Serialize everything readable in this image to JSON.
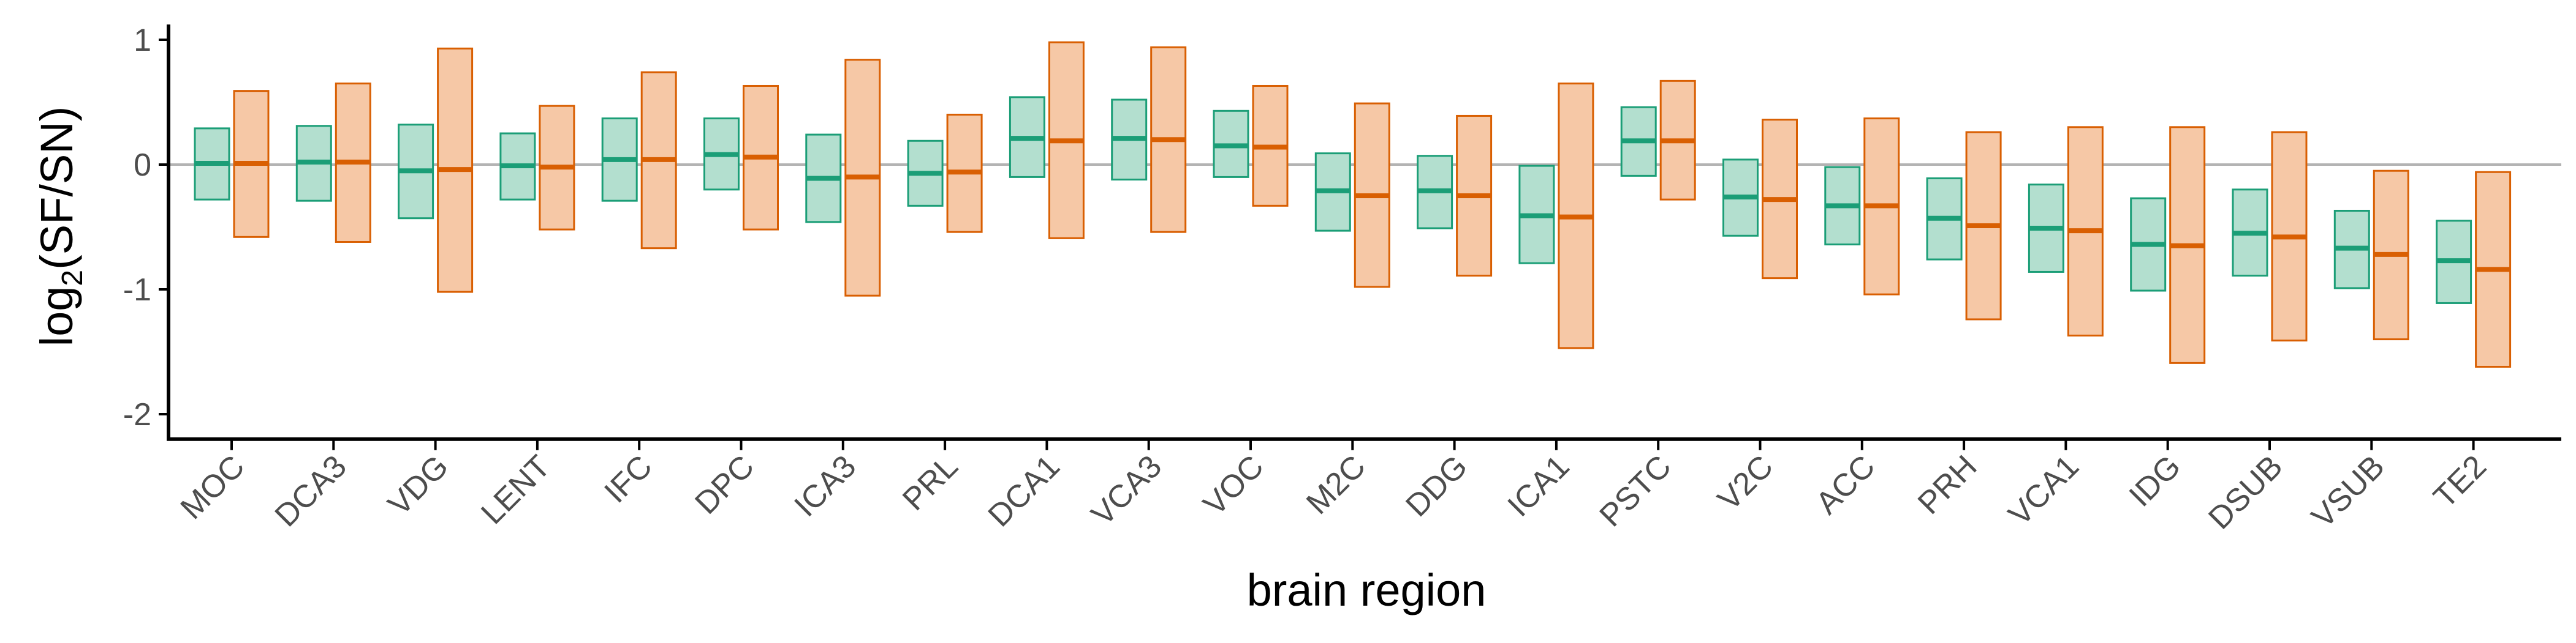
{
  "chart_data": {
    "type": "crossbar",
    "ylabel_main": "log",
    "ylabel_sub": "2",
    "ylabel_rest": "(SF/SN)",
    "xlabel": "brain region",
    "ylim": [
      -2.2,
      1.15
    ],
    "yticks": [
      1,
      0,
      -1,
      -2
    ],
    "yticklabels": [
      "1",
      "0",
      "-1",
      "-2"
    ],
    "reference_line": 0,
    "grid": false,
    "colors": {
      "green_fill": "#b3dfcf",
      "green_stroke": "#1b9e77",
      "orange_fill": "#f6c8a6",
      "orange_stroke": "#d95f02",
      "ref_line": "#b3b3b3",
      "axis": "#000000"
    },
    "categories": [
      "MOC",
      "DCA3",
      "VDG",
      "LENT",
      "IFC",
      "DPC",
      "ICA3",
      "PRL",
      "DCA1",
      "VCA3",
      "VOC",
      "M2C",
      "DDG",
      "ICA1",
      "PSTC",
      "V2C",
      "ACC",
      "PRH",
      "VCA1",
      "IDG",
      "DSUB",
      "VSUB",
      "TE2"
    ],
    "series": [
      {
        "color": "green",
        "values": [
          {
            "lower": -0.28,
            "mid": 0.01,
            "upper": 0.29
          },
          {
            "lower": -0.29,
            "mid": 0.02,
            "upper": 0.31
          },
          {
            "lower": -0.43,
            "mid": -0.05,
            "upper": 0.32
          },
          {
            "lower": -0.28,
            "mid": -0.01,
            "upper": 0.25
          },
          {
            "lower": -0.29,
            "mid": 0.04,
            "upper": 0.37
          },
          {
            "lower": -0.2,
            "mid": 0.08,
            "upper": 0.37
          },
          {
            "lower": -0.46,
            "mid": -0.11,
            "upper": 0.24
          },
          {
            "lower": -0.33,
            "mid": -0.07,
            "upper": 0.19
          },
          {
            "lower": -0.1,
            "mid": 0.21,
            "upper": 0.54
          },
          {
            "lower": -0.12,
            "mid": 0.21,
            "upper": 0.52
          },
          {
            "lower": -0.1,
            "mid": 0.15,
            "upper": 0.43
          },
          {
            "lower": -0.53,
            "mid": -0.21,
            "upper": 0.09
          },
          {
            "lower": -0.51,
            "mid": -0.21,
            "upper": 0.07
          },
          {
            "lower": -0.79,
            "mid": -0.41,
            "upper": -0.01
          },
          {
            "lower": -0.09,
            "mid": 0.19,
            "upper": 0.46
          },
          {
            "lower": -0.57,
            "mid": -0.26,
            "upper": 0.04
          },
          {
            "lower": -0.64,
            "mid": -0.33,
            "upper": -0.02
          },
          {
            "lower": -0.76,
            "mid": -0.43,
            "upper": -0.11
          },
          {
            "lower": -0.86,
            "mid": -0.51,
            "upper": -0.16
          },
          {
            "lower": -1.01,
            "mid": -0.64,
            "upper": -0.27
          },
          {
            "lower": -0.89,
            "mid": -0.55,
            "upper": -0.2
          },
          {
            "lower": -0.99,
            "mid": -0.67,
            "upper": -0.37
          },
          {
            "lower": -1.11,
            "mid": -0.77,
            "upper": -0.45
          }
        ]
      },
      {
        "color": "orange",
        "values": [
          {
            "lower": -0.58,
            "mid": 0.01,
            "upper": 0.59
          },
          {
            "lower": -0.62,
            "mid": 0.02,
            "upper": 0.65
          },
          {
            "lower": -1.02,
            "mid": -0.04,
            "upper": 0.93
          },
          {
            "lower": -0.52,
            "mid": -0.02,
            "upper": 0.47
          },
          {
            "lower": -0.67,
            "mid": 0.04,
            "upper": 0.74
          },
          {
            "lower": -0.52,
            "mid": 0.06,
            "upper": 0.63
          },
          {
            "lower": -1.05,
            "mid": -0.1,
            "upper": 0.84
          },
          {
            "lower": -0.54,
            "mid": -0.06,
            "upper": 0.4
          },
          {
            "lower": -0.59,
            "mid": 0.19,
            "upper": 0.98
          },
          {
            "lower": -0.54,
            "mid": 0.2,
            "upper": 0.94
          },
          {
            "lower": -0.33,
            "mid": 0.14,
            "upper": 0.63
          },
          {
            "lower": -0.98,
            "mid": -0.25,
            "upper": 0.49
          },
          {
            "lower": -0.89,
            "mid": -0.25,
            "upper": 0.39
          },
          {
            "lower": -1.47,
            "mid": -0.42,
            "upper": 0.65
          },
          {
            "lower": -0.28,
            "mid": 0.19,
            "upper": 0.67
          },
          {
            "lower": -0.91,
            "mid": -0.28,
            "upper": 0.36
          },
          {
            "lower": -1.04,
            "mid": -0.33,
            "upper": 0.37
          },
          {
            "lower": -1.24,
            "mid": -0.49,
            "upper": 0.26
          },
          {
            "lower": -1.37,
            "mid": -0.53,
            "upper": 0.3
          },
          {
            "lower": -1.59,
            "mid": -0.65,
            "upper": 0.3
          },
          {
            "lower": -1.41,
            "mid": -0.58,
            "upper": 0.26
          },
          {
            "lower": -1.4,
            "mid": -0.72,
            "upper": -0.05
          },
          {
            "lower": -1.62,
            "mid": -0.84,
            "upper": -0.06
          }
        ]
      }
    ]
  }
}
